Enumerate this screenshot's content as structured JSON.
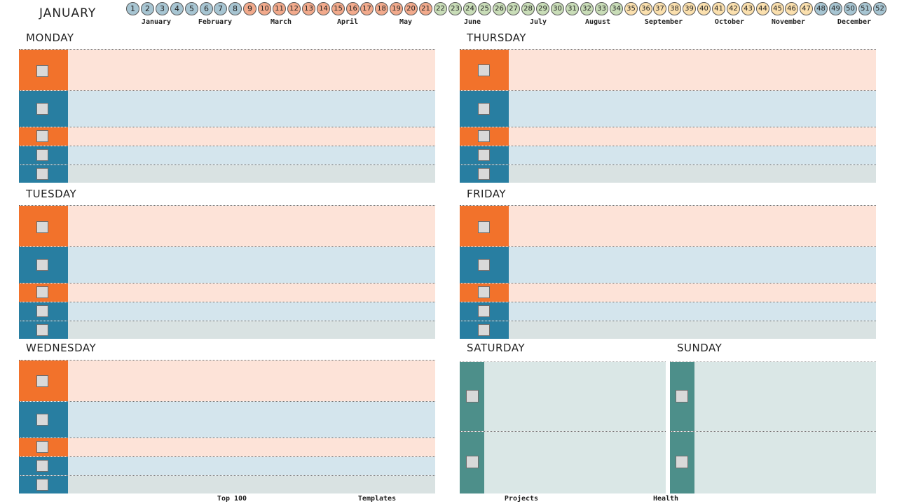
{
  "header": {
    "month_title": "JANUARY",
    "weeks": [
      "1",
      "2",
      "3",
      "4",
      "5",
      "6",
      "7",
      "8",
      "9",
      "10",
      "11",
      "12",
      "13",
      "14",
      "15",
      "16",
      "17",
      "18",
      "19",
      "20",
      "21",
      "22",
      "23",
      "24",
      "25",
      "26",
      "27",
      "28",
      "29",
      "30",
      "31",
      "32",
      "33",
      "34",
      "35",
      "36",
      "37",
      "38",
      "39",
      "40",
      "41",
      "42",
      "43",
      "44",
      "45",
      "46",
      "47",
      "48",
      "49",
      "50",
      "51",
      "52"
    ],
    "months": [
      "January",
      "February",
      "March",
      "April",
      "May",
      "June",
      "July",
      "August",
      "September",
      "October",
      "November",
      "December"
    ]
  },
  "colors": {
    "winter": "#a7c5d2",
    "spring": "#f2aa8c",
    "summer": "#c9ddb8",
    "autumn": "#fbe0ae",
    "orange": "#f2722b",
    "blue": "#287ea1",
    "teal": "#4d8f8a"
  },
  "days": {
    "monday": "MONDAY",
    "tuesday": "TUESDAY",
    "wednesday": "WEDNESDAY",
    "thursday": "THURSDAY",
    "friday": "FRIDAY",
    "saturday": "SATURDAY",
    "sunday": "SUNDAY"
  },
  "footer": {
    "top100": "Top 100",
    "templates": "Templates",
    "projects": "Projects",
    "health": "Health"
  }
}
